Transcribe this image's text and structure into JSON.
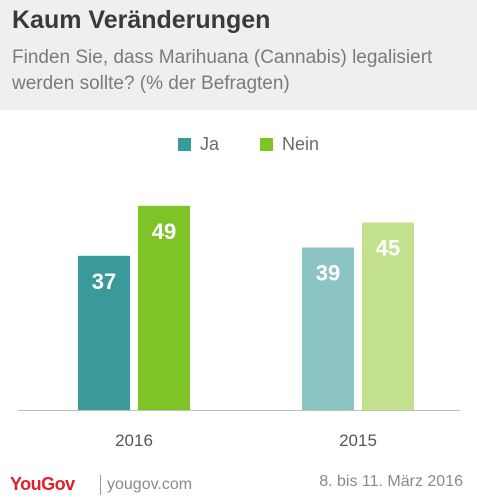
{
  "header": {
    "title": "Kaum Veränderungen",
    "subtitle": "Finden Sie, dass Marihuana (Cannabis) legalisiert werden sollte? (% der Befragten)"
  },
  "legend": [
    {
      "label": "Ja",
      "color": "#3a9a9a"
    },
    {
      "label": "Nein",
      "color": "#7fc426"
    }
  ],
  "chart_data": {
    "type": "bar",
    "title": "Kaum Veränderungen",
    "categories": [
      "2016",
      "2015"
    ],
    "series": [
      {
        "name": "Ja",
        "values": [
          37,
          39
        ],
        "colors": [
          "#3a9a9a",
          "#8cc4c4"
        ]
      },
      {
        "name": "Nein",
        "values": [
          49,
          45
        ],
        "colors": [
          "#7fc426",
          "#c4e28e"
        ]
      }
    ],
    "xlabel": "",
    "ylabel": "",
    "ylim": [
      0,
      60
    ],
    "grid": false,
    "legend_position": "top-center"
  },
  "footer": {
    "brand": "YouGov",
    "site": "yougov.com",
    "date": "8. bis 11. März 2016"
  }
}
